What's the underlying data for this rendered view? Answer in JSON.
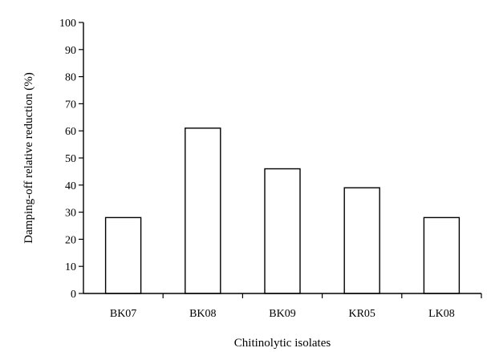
{
  "chart_data": {
    "type": "bar",
    "title": "",
    "xlabel": "Chitinolytic isolates",
    "ylabel": "Damping-off relative reduction (%)",
    "categories": [
      "BK07",
      "BK08",
      "BK09",
      "KR05",
      "LK08"
    ],
    "values": [
      28,
      61,
      46,
      39,
      28
    ],
    "ylim": [
      0,
      100
    ],
    "yticks": [
      0,
      10,
      20,
      30,
      40,
      50,
      60,
      70,
      80,
      90,
      100
    ],
    "grid": false,
    "legend": "none"
  }
}
